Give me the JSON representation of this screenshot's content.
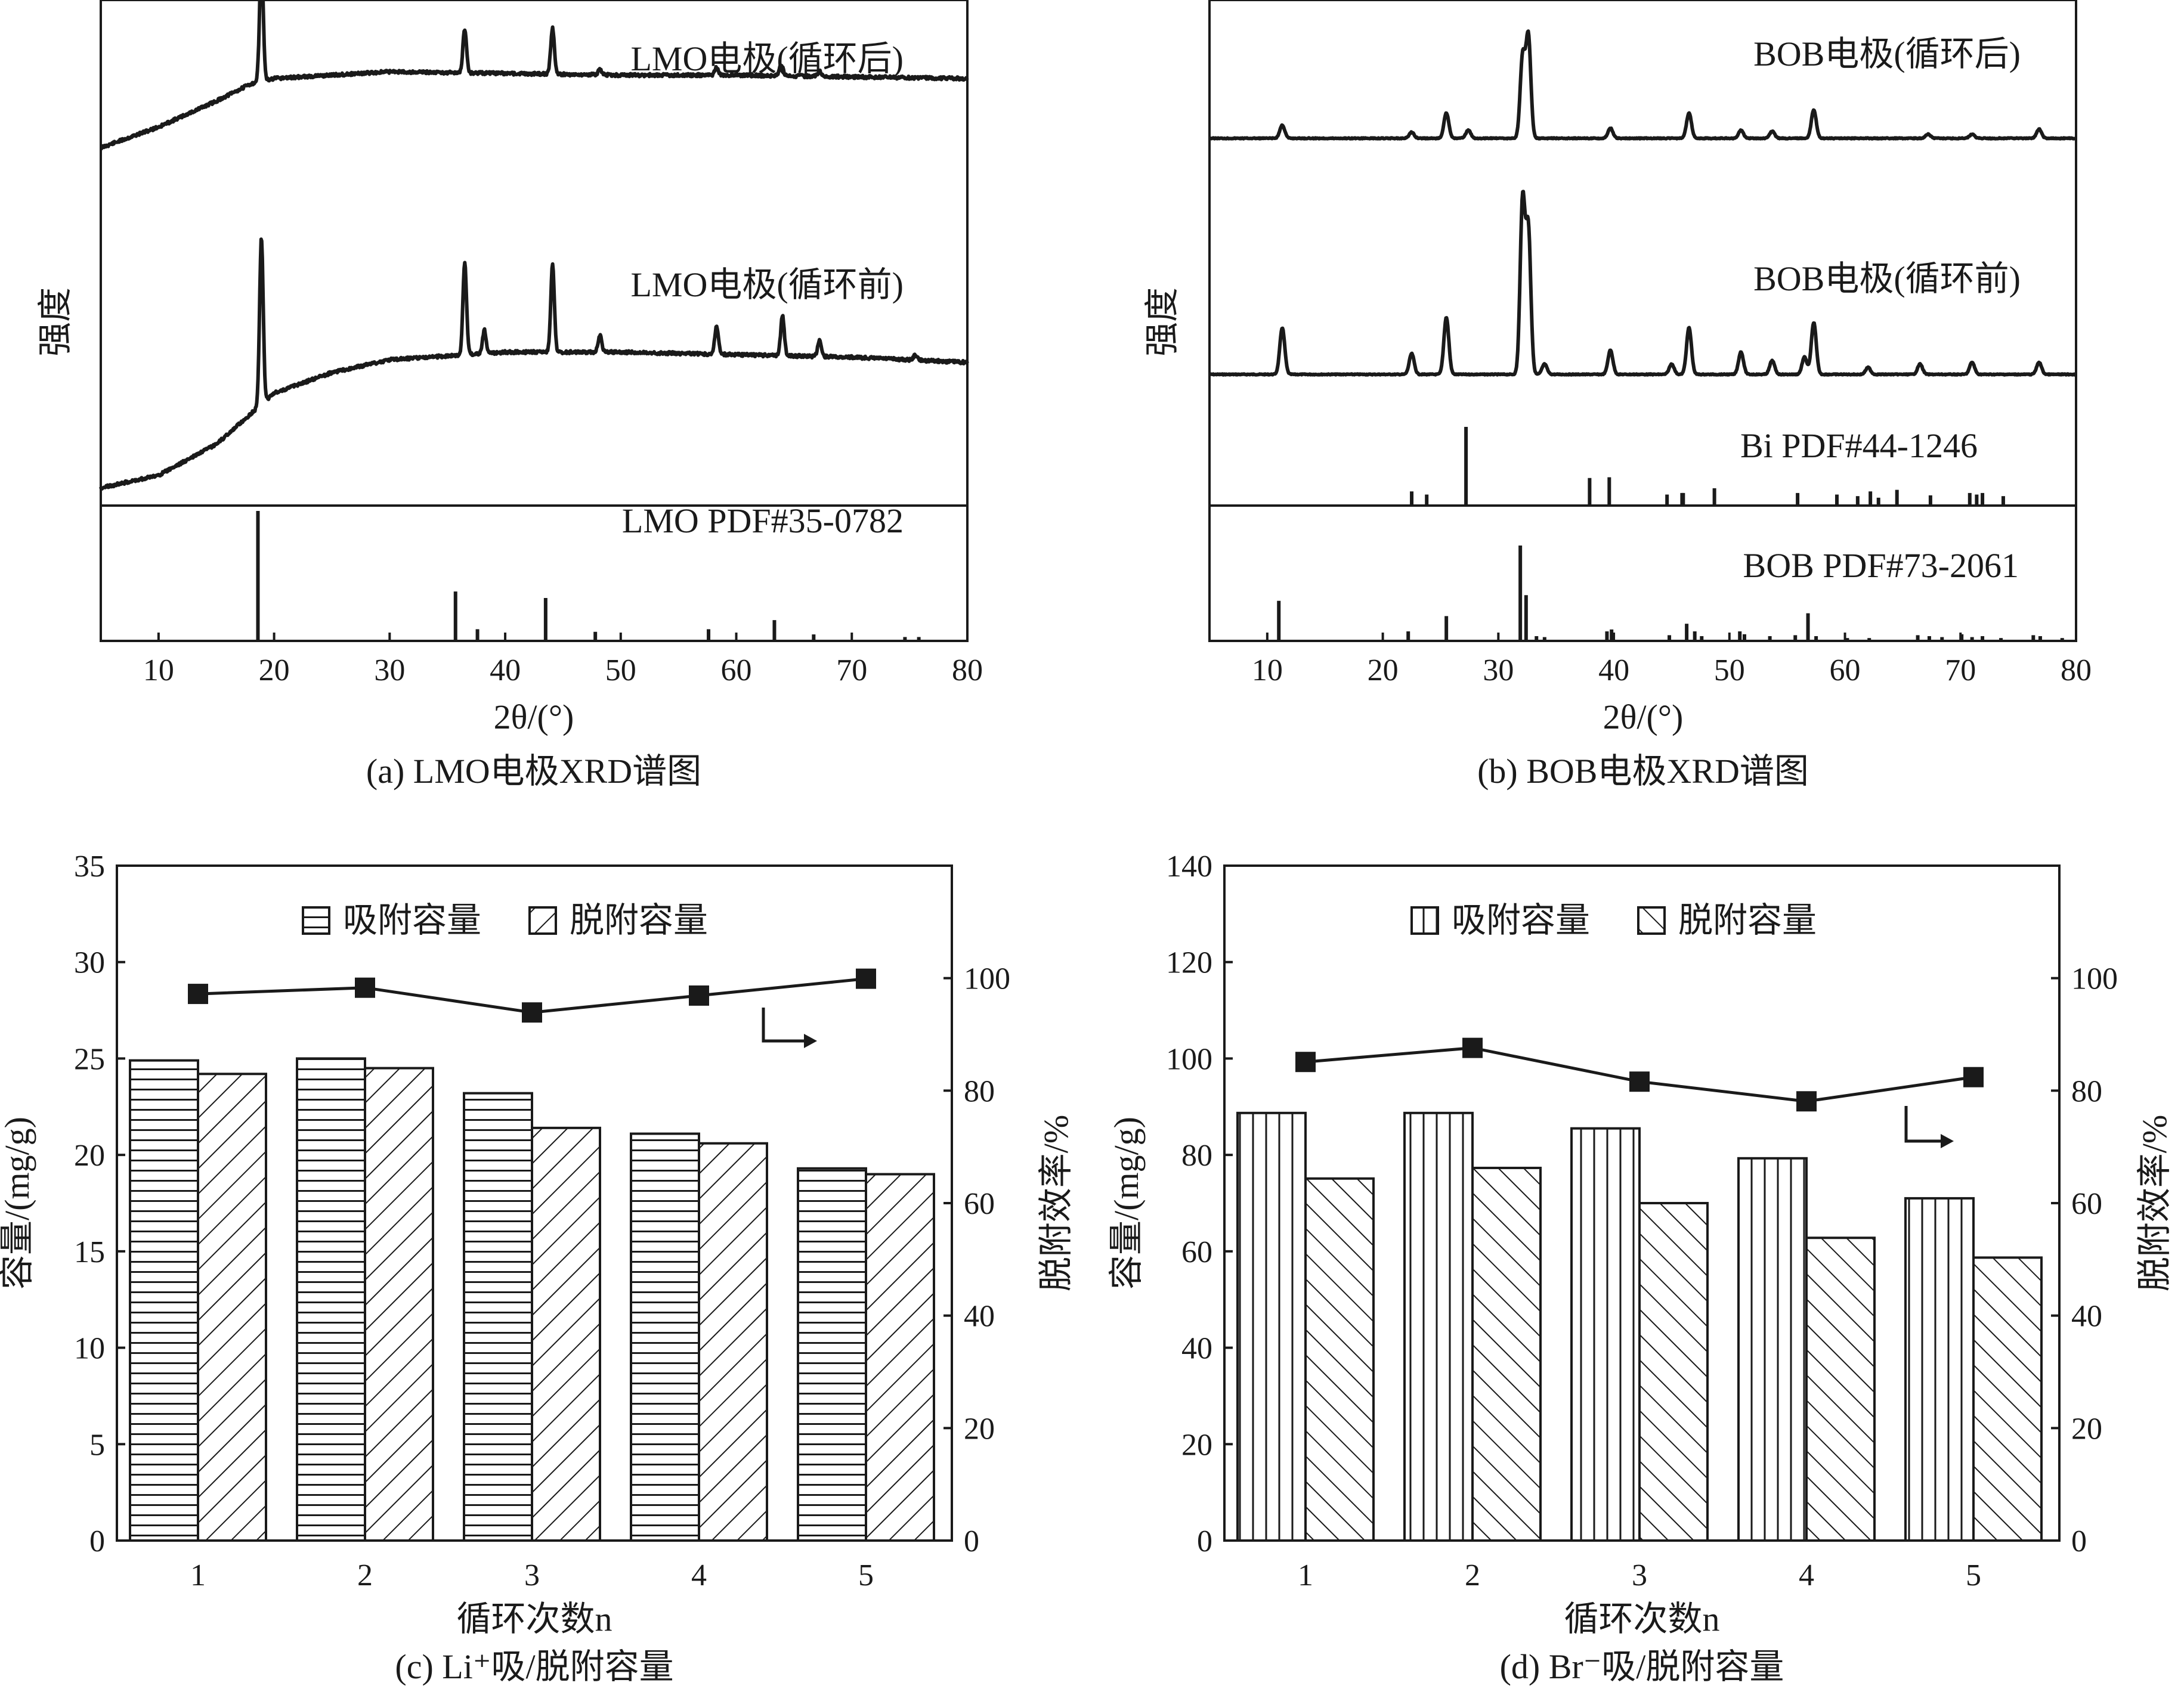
{
  "chart_data": [
    {
      "id": "a",
      "type": "line",
      "title": "(a) LMO电极XRD谱图",
      "xlabel": "2θ/(°)",
      "ylabel": "强度",
      "xlim": [
        5,
        80
      ],
      "xticks": [
        10,
        20,
        30,
        40,
        50,
        60,
        70,
        80
      ],
      "series": [
        {
          "name": "LMO电极(循环后)",
          "baseline": [
            [
              5,
              0.18
            ],
            [
              10,
              0.3
            ],
            [
              15,
              0.45
            ],
            [
              18,
              0.55
            ],
            [
              20,
              0.58
            ],
            [
              30,
              0.62
            ],
            [
              40,
              0.61
            ],
            [
              50,
              0.6
            ],
            [
              60,
              0.6
            ],
            [
              70,
              0.59
            ],
            [
              80,
              0.58
            ]
          ],
          "peaks": [
            [
              18.9,
              1.0
            ],
            [
              36.5,
              0.35
            ],
            [
              44.1,
              0.37
            ],
            [
              48.2,
              0.04
            ],
            [
              58.3,
              0.06
            ],
            [
              63.9,
              0.09
            ],
            [
              67.2,
              0.04
            ]
          ]
        },
        {
          "name": "LMO电极(循环前)",
          "baseline": [
            [
              5,
              0.05
            ],
            [
              10,
              0.1
            ],
            [
              15,
              0.22
            ],
            [
              18,
              0.34
            ],
            [
              20,
              0.42
            ],
            [
              25,
              0.5
            ],
            [
              30,
              0.55
            ],
            [
              40,
              0.58
            ],
            [
              50,
              0.58
            ],
            [
              60,
              0.57
            ],
            [
              70,
              0.56
            ],
            [
              80,
              0.54
            ]
          ],
          "peaks": [
            [
              18.9,
              1.0
            ],
            [
              36.5,
              0.55
            ],
            [
              38.2,
              0.14
            ],
            [
              44.1,
              0.52
            ],
            [
              48.2,
              0.1
            ],
            [
              58.3,
              0.17
            ],
            [
              64.0,
              0.24
            ],
            [
              67.2,
              0.1
            ],
            [
              75.5,
              0.03
            ]
          ]
        },
        {
          "name": "LMO PDF#35-0782",
          "type": "stick",
          "peaks": [
            [
              18.6,
              1.0
            ],
            [
              35.7,
              0.38
            ],
            [
              37.6,
              0.09
            ],
            [
              43.5,
              0.33
            ],
            [
              47.8,
              0.07
            ],
            [
              57.6,
              0.09
            ],
            [
              63.3,
              0.16
            ],
            [
              66.7,
              0.05
            ],
            [
              74.6,
              0.03
            ],
            [
              75.8,
              0.03
            ]
          ]
        }
      ]
    },
    {
      "id": "b",
      "type": "line",
      "title": "(b) BOB电极XRD谱图",
      "xlabel": "2θ/(°)",
      "ylabel": "强度",
      "xlim": [
        5,
        80
      ],
      "xticks": [
        10,
        20,
        30,
        40,
        50,
        60,
        70,
        80
      ],
      "series": [
        {
          "name": "BOB电极(循环后)",
          "peaks": [
            [
              11.3,
              0.13
            ],
            [
              22.5,
              0.06
            ],
            [
              25.5,
              0.25
            ],
            [
              27.4,
              0.08
            ],
            [
              32.1,
              0.8
            ],
            [
              32.6,
              1.0
            ],
            [
              39.7,
              0.1
            ],
            [
              46.5,
              0.25
            ],
            [
              51.0,
              0.08
            ],
            [
              53.7,
              0.07
            ],
            [
              57.3,
              0.28
            ],
            [
              67.2,
              0.04
            ],
            [
              71.0,
              0.04
            ],
            [
              76.8,
              0.09
            ]
          ]
        },
        {
          "name": "BOB电极(循环前)",
          "peaks": [
            [
              11.3,
              0.27
            ],
            [
              22.5,
              0.12
            ],
            [
              25.5,
              0.33
            ],
            [
              32.1,
              1.0
            ],
            [
              32.6,
              0.83
            ],
            [
              34.0,
              0.06
            ],
            [
              39.7,
              0.14
            ],
            [
              45.0,
              0.06
            ],
            [
              46.5,
              0.27
            ],
            [
              51.0,
              0.13
            ],
            [
              53.7,
              0.08
            ],
            [
              56.5,
              0.1
            ],
            [
              57.3,
              0.3
            ],
            [
              62.0,
              0.04
            ],
            [
              66.5,
              0.06
            ],
            [
              71.0,
              0.07
            ],
            [
              76.8,
              0.07
            ]
          ]
        },
        {
          "name": "Bi PDF#44-1246",
          "type": "stick",
          "peaks": [
            [
              22.5,
              0.18
            ],
            [
              23.8,
              0.14
            ],
            [
              27.2,
              1.0
            ],
            [
              37.9,
              0.35
            ],
            [
              39.6,
              0.36
            ],
            [
              44.6,
              0.14
            ],
            [
              45.9,
              0.16
            ],
            [
              46.0,
              0.16
            ],
            [
              48.7,
              0.22
            ],
            [
              55.9,
              0.16
            ],
            [
              59.3,
              0.14
            ],
            [
              61.1,
              0.12
            ],
            [
              62.2,
              0.18
            ],
            [
              62.9,
              0.1
            ],
            [
              64.5,
              0.2
            ],
            [
              67.4,
              0.13
            ],
            [
              70.8,
              0.16
            ],
            [
              71.4,
              0.14
            ],
            [
              71.9,
              0.16
            ],
            [
              73.7,
              0.12
            ]
          ]
        },
        {
          "name": "BOB PDF#73-2061",
          "type": "stick",
          "peaks": [
            [
              11.0,
              0.42
            ],
            [
              22.2,
              0.1
            ],
            [
              25.5,
              0.26
            ],
            [
              31.9,
              1.0
            ],
            [
              32.4,
              0.48
            ],
            [
              33.3,
              0.05
            ],
            [
              34.0,
              0.04
            ],
            [
              39.4,
              0.1
            ],
            [
              39.8,
              0.12
            ],
            [
              44.8,
              0.06
            ],
            [
              46.3,
              0.18
            ],
            [
              47.0,
              0.1
            ],
            [
              47.6,
              0.05
            ],
            [
              50.9,
              0.1
            ],
            [
              51.3,
              0.07
            ],
            [
              53.5,
              0.05
            ],
            [
              55.7,
              0.06
            ],
            [
              56.8,
              0.29
            ],
            [
              57.5,
              0.05
            ],
            [
              60.2,
              0.03
            ],
            [
              62.1,
              0.03
            ],
            [
              66.3,
              0.06
            ],
            [
              67.3,
              0.05
            ],
            [
              68.4,
              0.04
            ],
            [
              70.1,
              0.07
            ],
            [
              71.0,
              0.04
            ],
            [
              71.9,
              0.05
            ],
            [
              73.5,
              0.03
            ],
            [
              76.3,
              0.06
            ],
            [
              76.9,
              0.05
            ],
            [
              78.8,
              0.03
            ]
          ]
        }
      ]
    },
    {
      "id": "c",
      "type": "bar",
      "title": "(c) Li⁺吸/脱附容量",
      "xlabel": "循环次数n",
      "ylabel": "容量/(mg/g)",
      "y2label": "脱附效率/%",
      "ylim": [
        0,
        35
      ],
      "yticks": [
        0,
        5,
        10,
        15,
        20,
        25,
        30,
        35
      ],
      "y2lim": [
        0,
        120
      ],
      "y2ticks": [
        0,
        20,
        40,
        60,
        80,
        100
      ],
      "categories": [
        "1",
        "2",
        "3",
        "4",
        "5"
      ],
      "series": [
        {
          "name": "吸附容量",
          "pattern": "horizontal",
          "values": [
            24.9,
            25.0,
            23.2,
            21.1,
            19.3
          ]
        },
        {
          "name": "脱附容量",
          "pattern": "diagonal",
          "values": [
            24.2,
            24.5,
            21.4,
            20.6,
            19.0
          ]
        },
        {
          "name": "脱附效率",
          "type": "line",
          "axis": "right",
          "values": [
            97.2,
            98.3,
            93.9,
            96.9,
            99.9
          ]
        }
      ]
    },
    {
      "id": "d",
      "type": "bar",
      "title": "(d) Br⁻吸/脱附容量",
      "xlabel": "循环次数n",
      "ylabel": "容量/(mg/g)",
      "y2label": "脱附效率/%",
      "ylim": [
        0,
        140
      ],
      "yticks": [
        0,
        20,
        40,
        60,
        80,
        100,
        120,
        140
      ],
      "y2lim": [
        0,
        120
      ],
      "y2ticks": [
        0,
        20,
        40,
        60,
        80,
        100
      ],
      "categories": [
        "1",
        "2",
        "3",
        "4",
        "5"
      ],
      "series": [
        {
          "name": "吸附容量",
          "pattern": "vertical",
          "values": [
            88.7,
            88.7,
            85.5,
            79.3,
            71.0
          ]
        },
        {
          "name": "脱附容量",
          "pattern": "backslash",
          "values": [
            75.1,
            77.3,
            70.0,
            62.8,
            58.7
          ]
        },
        {
          "name": "脱附效率",
          "type": "line",
          "axis": "right",
          "values": [
            85.1,
            87.6,
            81.6,
            78.1,
            82.4
          ]
        }
      ]
    }
  ]
}
